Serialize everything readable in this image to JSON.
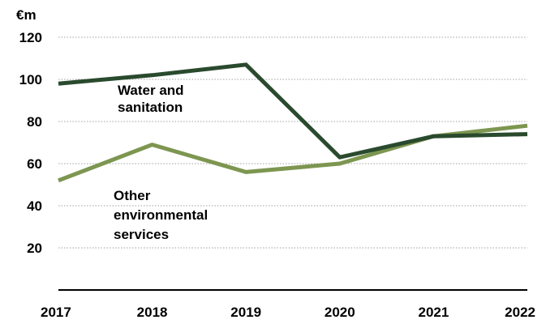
{
  "chart_data": {
    "type": "line",
    "ylabel": "€m",
    "x": [
      "2017",
      "2018",
      "2019",
      "2020",
      "2021",
      "2022"
    ],
    "ylim": [
      0,
      120
    ],
    "yticks": [
      20,
      40,
      60,
      80,
      100,
      120
    ],
    "grid": true,
    "series": [
      {
        "name": "Water and sanitation",
        "values": [
          98,
          102,
          107,
          63,
          73,
          74
        ],
        "color": "#2a4a2e"
      },
      {
        "name": "Other environmental services",
        "values": [
          52,
          69,
          56,
          60,
          73,
          78
        ],
        "color": "#7d9650"
      }
    ],
    "annotations": [
      {
        "lines": [
          "Water and",
          "sanitation"
        ],
        "series": "Water and sanitation"
      },
      {
        "lines": [
          "Other",
          "environmental",
          "services"
        ],
        "series": "Other environmental services"
      }
    ]
  }
}
